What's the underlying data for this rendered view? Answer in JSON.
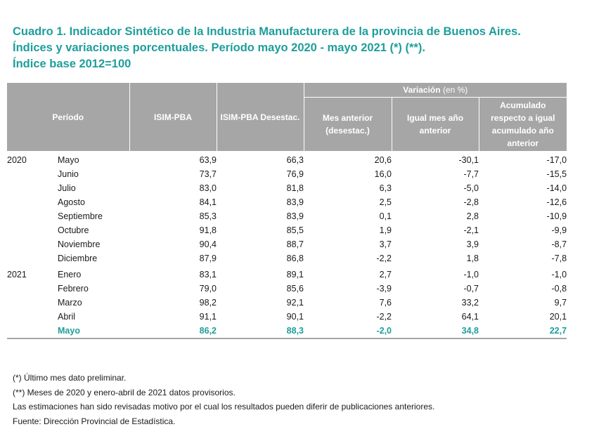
{
  "title": {
    "line1": "Cuadro 1. Indicador Sintético de la Industria Manufacturera de la provincia de Buenos Aires.",
    "line2": "Índices y variaciones porcentuales. Período mayo 2020 - mayo 2021 (*) (**).",
    "line3": "Índice base 2012=100"
  },
  "table": {
    "headers": {
      "periodo": "Período",
      "isim": "ISIM-PBA",
      "isim_desestac": "ISIM-PBA Desestac.",
      "variacion": "Variación",
      "variacion_unit": " (en %)",
      "mes_anterior": "Mes anterior (desestac.)",
      "igual_mes": "Igual mes año anterior",
      "acumulado": "Acumulado respecto a igual acumulado año anterior"
    },
    "rows": [
      {
        "year": "2020",
        "month": "Mayo",
        "isim": "63,9",
        "desestac": "66,3",
        "mes_anterior": "20,6",
        "igual_mes": "-30,1",
        "acumulado": "-17,0"
      },
      {
        "year": "",
        "month": "Junio",
        "isim": "73,7",
        "desestac": "76,9",
        "mes_anterior": "16,0",
        "igual_mes": "-7,7",
        "acumulado": "-15,5"
      },
      {
        "year": "",
        "month": "Julio",
        "isim": "83,0",
        "desestac": "81,8",
        "mes_anterior": "6,3",
        "igual_mes": "-5,0",
        "acumulado": "-14,0"
      },
      {
        "year": "",
        "month": "Agosto",
        "isim": "84,1",
        "desestac": "83,9",
        "mes_anterior": "2,5",
        "igual_mes": "-2,8",
        "acumulado": "-12,6"
      },
      {
        "year": "",
        "month": "Septiembre",
        "isim": "85,3",
        "desestac": "83,9",
        "mes_anterior": "0,1",
        "igual_mes": "2,8",
        "acumulado": "-10,9"
      },
      {
        "year": "",
        "month": "Octubre",
        "isim": "91,8",
        "desestac": "85,5",
        "mes_anterior": "1,9",
        "igual_mes": "-2,1",
        "acumulado": "-9,9"
      },
      {
        "year": "",
        "month": "Noviembre",
        "isim": "90,4",
        "desestac": "88,7",
        "mes_anterior": "3,7",
        "igual_mes": "3,9",
        "acumulado": "-8,7"
      },
      {
        "year": "",
        "month": "Diciembre",
        "isim": "87,9",
        "desestac": "86,8",
        "mes_anterior": "-2,2",
        "igual_mes": "1,8",
        "acumulado": "-7,8"
      },
      {
        "year": "2021",
        "month": "Enero",
        "isim": "83,1",
        "desestac": "89,1",
        "mes_anterior": "2,7",
        "igual_mes": "-1,0",
        "acumulado": "-1,0"
      },
      {
        "year": "",
        "month": "Febrero",
        "isim": "79,0",
        "desestac": "85,6",
        "mes_anterior": "-3,9",
        "igual_mes": "-0,7",
        "acumulado": "-0,8"
      },
      {
        "year": "",
        "month": "Marzo",
        "isim": "98,2",
        "desestac": "92,1",
        "mes_anterior": "7,6",
        "igual_mes": "33,2",
        "acumulado": "9,7"
      },
      {
        "year": "",
        "month": "Abril",
        "isim": "91,1",
        "desestac": "90,1",
        "mes_anterior": "-2,2",
        "igual_mes": "64,1",
        "acumulado": "20,1"
      },
      {
        "year": "",
        "month": "Mayo",
        "isim": "86,2",
        "desestac": "88,3",
        "mes_anterior": "-2,0",
        "igual_mes": "34,8",
        "acumulado": "22,7"
      }
    ]
  },
  "notes": {
    "n1": "(*) Último mes dato preliminar.",
    "n2": "(**) Meses de 2020 y  enero-abril de 2021 datos provisorios.",
    "n3": "Las estimaciones han sido revisadas motivo por el cual los resultados pueden diferir de publicaciones anteriores.",
    "n4": "Fuente: Dirección Provincial de Estadística."
  },
  "colors": {
    "accent": "#1e9e9b",
    "header_bg": "#a6a6a6"
  }
}
